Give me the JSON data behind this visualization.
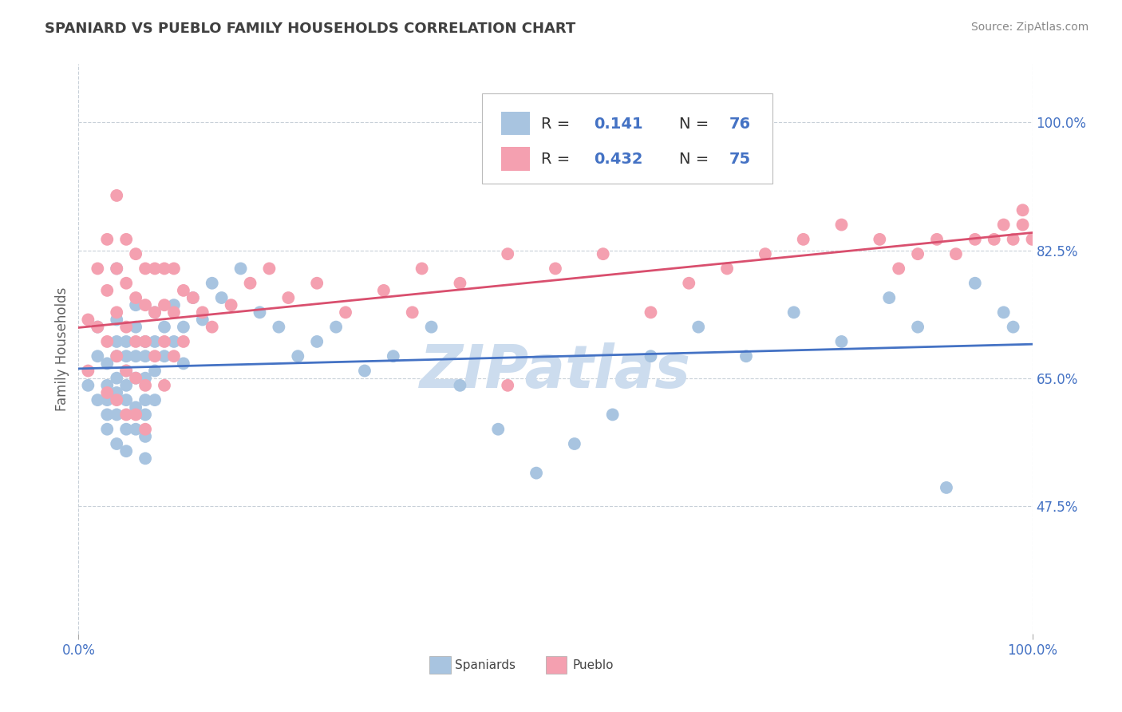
{
  "title": "SPANIARD VS PUEBLO FAMILY HOUSEHOLDS CORRELATION CHART",
  "source": "Source: ZipAtlas.com",
  "ylabel": "Family Households",
  "y_tick_labels": [
    "47.5%",
    "65.0%",
    "82.5%",
    "100.0%"
  ],
  "y_tick_values": [
    0.475,
    0.65,
    0.825,
    1.0
  ],
  "xlim": [
    0.0,
    1.0
  ],
  "ylim": [
    0.3,
    1.08
  ],
  "spaniards_R": 0.141,
  "spaniards_N": 76,
  "pueblo_R": 0.432,
  "pueblo_N": 75,
  "spaniards_color": "#a8c4e0",
  "pueblo_color": "#f4a0b0",
  "spaniards_line_color": "#4472c4",
  "pueblo_line_color": "#d94f6e",
  "watermark_color": "#ccdcee",
  "background_color": "#ffffff",
  "title_color": "#404040",
  "axis_label_color": "#4472c4",
  "grid_color": "#c8d0d8",
  "spaniards_x": [
    0.01,
    0.02,
    0.02,
    0.02,
    0.03,
    0.03,
    0.03,
    0.03,
    0.03,
    0.04,
    0.04,
    0.04,
    0.04,
    0.04,
    0.04,
    0.04,
    0.04,
    0.05,
    0.05,
    0.05,
    0.05,
    0.05,
    0.05,
    0.05,
    0.06,
    0.06,
    0.06,
    0.06,
    0.06,
    0.06,
    0.07,
    0.07,
    0.07,
    0.07,
    0.07,
    0.07,
    0.07,
    0.08,
    0.08,
    0.08,
    0.08,
    0.09,
    0.09,
    0.1,
    0.1,
    0.11,
    0.11,
    0.12,
    0.13,
    0.14,
    0.15,
    0.17,
    0.19,
    0.21,
    0.23,
    0.25,
    0.27,
    0.3,
    0.33,
    0.37,
    0.4,
    0.44,
    0.48,
    0.52,
    0.56,
    0.6,
    0.65,
    0.7,
    0.75,
    0.8,
    0.85,
    0.88,
    0.91,
    0.94,
    0.97,
    0.98
  ],
  "spaniards_y": [
    0.64,
    0.62,
    0.68,
    0.72,
    0.64,
    0.67,
    0.62,
    0.6,
    0.58,
    0.65,
    0.7,
    0.68,
    0.63,
    0.6,
    0.56,
    0.73,
    0.8,
    0.66,
    0.64,
    0.7,
    0.68,
    0.62,
    0.58,
    0.55,
    0.72,
    0.68,
    0.65,
    0.61,
    0.58,
    0.75,
    0.7,
    0.68,
    0.65,
    0.62,
    0.6,
    0.57,
    0.54,
    0.74,
    0.7,
    0.66,
    0.62,
    0.72,
    0.68,
    0.75,
    0.7,
    0.72,
    0.67,
    0.76,
    0.73,
    0.78,
    0.76,
    0.8,
    0.74,
    0.72,
    0.68,
    0.7,
    0.72,
    0.66,
    0.68,
    0.72,
    0.64,
    0.58,
    0.52,
    0.56,
    0.6,
    0.68,
    0.72,
    0.68,
    0.74,
    0.7,
    0.76,
    0.72,
    0.5,
    0.78,
    0.74,
    0.72
  ],
  "pueblo_x": [
    0.01,
    0.01,
    0.02,
    0.02,
    0.03,
    0.03,
    0.03,
    0.03,
    0.04,
    0.04,
    0.04,
    0.04,
    0.04,
    0.05,
    0.05,
    0.05,
    0.05,
    0.05,
    0.06,
    0.06,
    0.06,
    0.06,
    0.06,
    0.07,
    0.07,
    0.07,
    0.07,
    0.07,
    0.08,
    0.08,
    0.08,
    0.09,
    0.09,
    0.09,
    0.09,
    0.1,
    0.1,
    0.1,
    0.11,
    0.11,
    0.12,
    0.13,
    0.14,
    0.16,
    0.18,
    0.2,
    0.22,
    0.25,
    0.28,
    0.32,
    0.36,
    0.4,
    0.45,
    0.5,
    0.55,
    0.6,
    0.64,
    0.68,
    0.72,
    0.76,
    0.8,
    0.84,
    0.86,
    0.88,
    0.9,
    0.92,
    0.94,
    0.96,
    0.97,
    0.98,
    0.99,
    0.99,
    1.0,
    0.35,
    0.45
  ],
  "pueblo_y": [
    0.66,
    0.73,
    0.8,
    0.72,
    0.84,
    0.77,
    0.7,
    0.63,
    0.8,
    0.74,
    0.68,
    0.62,
    0.9,
    0.84,
    0.78,
    0.72,
    0.66,
    0.6,
    0.82,
    0.76,
    0.7,
    0.65,
    0.6,
    0.8,
    0.75,
    0.7,
    0.64,
    0.58,
    0.8,
    0.74,
    0.68,
    0.8,
    0.75,
    0.7,
    0.64,
    0.8,
    0.74,
    0.68,
    0.77,
    0.7,
    0.76,
    0.74,
    0.72,
    0.75,
    0.78,
    0.8,
    0.76,
    0.78,
    0.74,
    0.77,
    0.8,
    0.78,
    0.82,
    0.8,
    0.82,
    0.74,
    0.78,
    0.8,
    0.82,
    0.84,
    0.86,
    0.84,
    0.8,
    0.82,
    0.84,
    0.82,
    0.84,
    0.84,
    0.86,
    0.84,
    0.88,
    0.86,
    0.84,
    0.74,
    0.64
  ]
}
